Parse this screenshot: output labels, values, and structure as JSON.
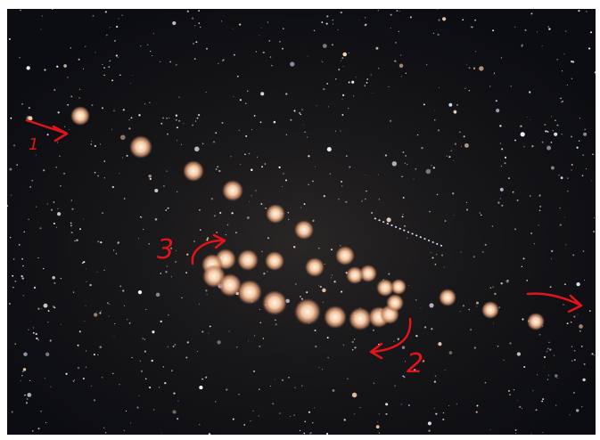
{
  "annotations": [
    {
      "label": "1"
    },
    {
      "label": "2"
    },
    {
      "label": "3"
    }
  ]
}
